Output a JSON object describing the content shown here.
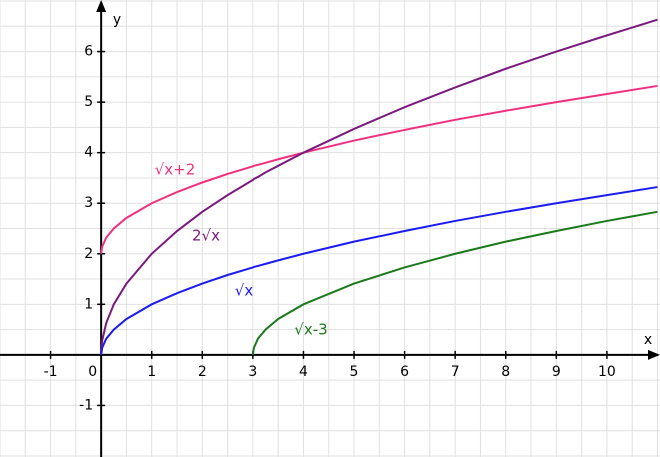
{
  "chart_data": {
    "type": "line",
    "x_label": "x",
    "y_label": "y",
    "x": [
      0,
      0.02,
      0.1,
      0.25,
      0.5,
      1,
      1.5,
      2,
      2.5,
      3,
      3.02,
      3.1,
      3.25,
      3.5,
      4,
      5,
      6,
      7,
      8,
      9,
      10,
      11
    ],
    "series": [
      {
        "name": "√x+2",
        "color": "#f0307f",
        "values": [
          2,
          2.14,
          2.32,
          2.5,
          2.71,
          3,
          3.22,
          3.41,
          3.58,
          3.73,
          3.74,
          3.76,
          3.8,
          3.87,
          4,
          4.24,
          4.45,
          4.65,
          4.83,
          5,
          5.16,
          5.32
        ]
      },
      {
        "name": "2√x",
        "color": "#7a1a7e",
        "values": [
          0,
          0.28,
          0.63,
          1,
          1.41,
          2,
          2.45,
          2.83,
          3.16,
          3.46,
          3.48,
          3.52,
          3.61,
          3.74,
          4,
          4.47,
          4.9,
          5.29,
          5.66,
          6,
          6.32,
          6.63
        ]
      },
      {
        "name": "√x",
        "color": "#1c1cf0",
        "values": [
          0,
          0.14,
          0.32,
          0.5,
          0.71,
          1,
          1.22,
          1.41,
          1.58,
          1.73,
          1.74,
          1.76,
          1.8,
          1.87,
          2,
          2.24,
          2.45,
          2.65,
          2.83,
          3,
          3.16,
          3.32
        ]
      },
      {
        "name": "√x-3",
        "color": "#1c7a1c",
        "values": [
          null,
          null,
          null,
          null,
          null,
          null,
          null,
          null,
          null,
          0,
          0.14,
          0.32,
          0.5,
          0.71,
          1,
          1.41,
          1.73,
          2,
          2.24,
          2.45,
          2.65,
          2.83
        ]
      }
    ],
    "xlim": [
      -2,
      11.05
    ],
    "ylim": [
      -2.02,
      7.02
    ],
    "xticks": [
      -1,
      0,
      1,
      2,
      3,
      4,
      5,
      6,
      7,
      8,
      9,
      10
    ],
    "yticks": [
      -1,
      1,
      2,
      3,
      4,
      5,
      6
    ],
    "grid": true,
    "grid_step": 0.5
  }
}
